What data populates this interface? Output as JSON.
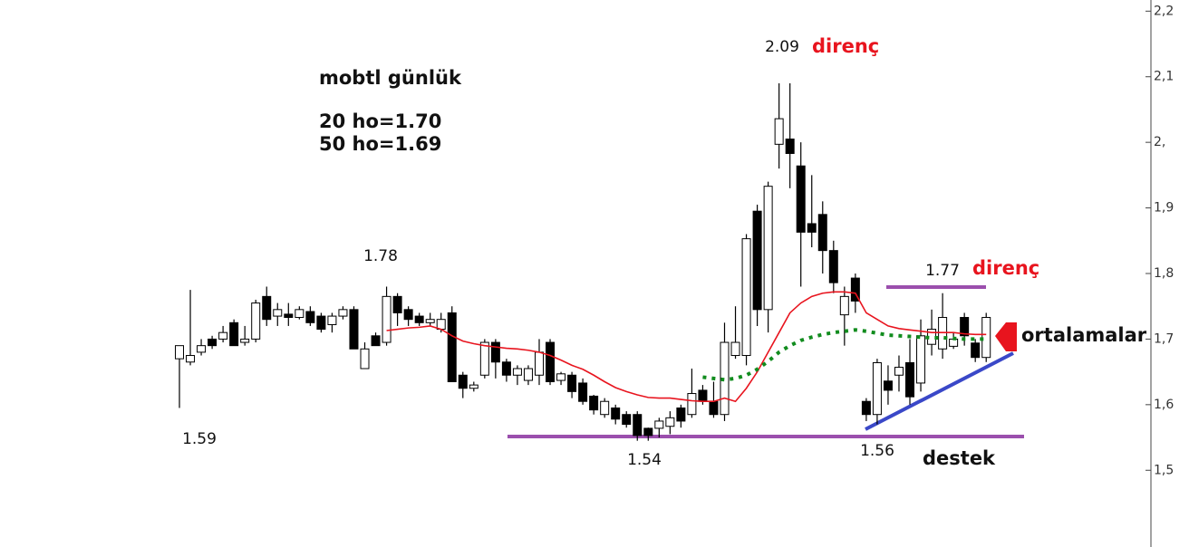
{
  "chart_data": {
    "type": "candlestick",
    "ylim": [
      1.383,
      2.217
    ],
    "yticks": [
      {
        "value": 1.5,
        "label": "1,5"
      },
      {
        "value": 1.6,
        "label": "1,6"
      },
      {
        "value": 1.7,
        "label": "1,7"
      },
      {
        "value": 1.8,
        "label": "1,8"
      },
      {
        "value": 1.9,
        "label": "1,9"
      },
      {
        "value": 2.0,
        "label": "2,"
      },
      {
        "value": 2.1,
        "label": "2,1"
      },
      {
        "value": 2.2,
        "label": "2,2"
      }
    ],
    "up_color": "#ffffff",
    "down_color": "#000000",
    "open": [
      1.67,
      1.665,
      1.68,
      1.7,
      1.7,
      1.725,
      1.695,
      1.7,
      1.765,
      1.735,
      1.738,
      1.733,
      1.742,
      1.735,
      1.722,
      1.735,
      1.745,
      1.655,
      1.705,
      1.695,
      1.765,
      1.745,
      1.735,
      1.725,
      1.715,
      1.74,
      1.645,
      1.625,
      1.645,
      1.695,
      1.665,
      1.645,
      1.637,
      1.645,
      1.695,
      1.637,
      1.645,
      1.633,
      1.613,
      1.585,
      1.595,
      1.585,
      1.585,
      1.564,
      1.564,
      1.567,
      1.595,
      1.585,
      1.622,
      1.605,
      1.585,
      1.675,
      1.675,
      1.895,
      1.745,
      1.997,
      2.005,
      1.964,
      1.876,
      1.89,
      1.835,
      1.737,
      1.793,
      1.605,
      1.585,
      1.636,
      1.645,
      1.664,
      1.633,
      1.692,
      1.685,
      1.689,
      1.733,
      1.694,
      1.672
    ],
    "close": [
      1.69,
      1.675,
      1.69,
      1.69,
      1.71,
      1.69,
      1.7,
      1.755,
      1.73,
      1.745,
      1.733,
      1.745,
      1.725,
      1.715,
      1.735,
      1.745,
      1.685,
      1.685,
      1.69,
      1.765,
      1.74,
      1.73,
      1.725,
      1.73,
      1.73,
      1.635,
      1.625,
      1.63,
      1.695,
      1.665,
      1.645,
      1.655,
      1.655,
      1.68,
      1.635,
      1.647,
      1.62,
      1.605,
      1.592,
      1.605,
      1.578,
      1.57,
      1.553,
      1.553,
      1.575,
      1.58,
      1.575,
      1.617,
      1.605,
      1.585,
      1.695,
      1.695,
      1.853,
      1.745,
      1.933,
      2.036,
      1.983,
      1.863,
      1.863,
      1.835,
      1.786,
      1.765,
      1.758,
      1.585,
      1.664,
      1.622,
      1.657,
      1.612,
      1.705,
      1.715,
      1.733,
      1.7,
      1.705,
      1.672,
      1.733
    ],
    "high": [
      1.69,
      1.775,
      1.7,
      1.705,
      1.72,
      1.73,
      1.72,
      1.76,
      1.78,
      1.755,
      1.755,
      1.75,
      1.75,
      1.74,
      1.74,
      1.75,
      1.75,
      1.695,
      1.71,
      1.78,
      1.77,
      1.75,
      1.74,
      1.74,
      1.74,
      1.75,
      1.65,
      1.635,
      1.7,
      1.7,
      1.67,
      1.66,
      1.66,
      1.7,
      1.7,
      1.65,
      1.65,
      1.64,
      1.615,
      1.61,
      1.6,
      1.59,
      1.59,
      1.565,
      1.58,
      1.59,
      1.6,
      1.655,
      1.63,
      1.635,
      1.725,
      1.75,
      1.86,
      1.905,
      1.94,
      2.09,
      2.09,
      2.0,
      1.95,
      1.91,
      1.85,
      1.78,
      1.8,
      1.61,
      1.67,
      1.66,
      1.675,
      1.7,
      1.73,
      1.745,
      1.77,
      1.71,
      1.74,
      1.7,
      1.74
    ],
    "low": [
      1.595,
      1.66,
      1.675,
      1.685,
      1.695,
      1.69,
      1.69,
      1.695,
      1.72,
      1.72,
      1.72,
      1.73,
      1.72,
      1.71,
      1.71,
      1.73,
      1.685,
      1.655,
      1.69,
      1.69,
      1.72,
      1.72,
      1.72,
      1.72,
      1.71,
      1.635,
      1.61,
      1.62,
      1.64,
      1.64,
      1.635,
      1.63,
      1.63,
      1.63,
      1.63,
      1.63,
      1.61,
      1.6,
      1.585,
      1.58,
      1.57,
      1.565,
      1.545,
      1.545,
      1.55,
      1.555,
      1.565,
      1.58,
      1.6,
      1.58,
      1.575,
      1.67,
      1.66,
      1.72,
      1.71,
      1.96,
      1.93,
      1.78,
      1.84,
      1.8,
      1.77,
      1.69,
      1.74,
      1.575,
      1.57,
      1.6,
      1.62,
      1.6,
      1.62,
      1.675,
      1.67,
      1.685,
      1.69,
      1.665,
      1.665
    ],
    "averages": [
      {
        "color": "#e8141e",
        "style": "solid",
        "values": [
          null,
          null,
          null,
          null,
          null,
          null,
          null,
          null,
          null,
          null,
          null,
          null,
          null,
          null,
          null,
          null,
          null,
          null,
          null,
          1.713,
          1.715,
          1.717,
          1.718,
          1.72,
          1.715,
          1.705,
          1.697,
          1.693,
          1.69,
          1.688,
          1.686,
          1.685,
          1.683,
          1.68,
          1.675,
          1.668,
          1.66,
          1.654,
          1.645,
          1.635,
          1.626,
          1.62,
          1.615,
          1.611,
          1.61,
          1.61,
          1.608,
          1.606,
          1.605,
          1.605,
          1.61,
          1.605,
          1.625,
          1.65,
          1.68,
          1.71,
          1.74,
          1.755,
          1.765,
          1.77,
          1.772,
          1.772,
          1.77,
          1.74,
          1.73,
          1.72,
          1.716,
          1.714,
          1.712,
          1.71,
          1.71,
          1.71,
          1.708,
          1.707,
          1.707
        ]
      },
      {
        "color": "#118c1e",
        "style": "dotted",
        "values": [
          null,
          null,
          null,
          null,
          null,
          null,
          null,
          null,
          null,
          null,
          null,
          null,
          null,
          null,
          null,
          null,
          null,
          null,
          null,
          null,
          null,
          null,
          null,
          null,
          null,
          null,
          null,
          null,
          null,
          null,
          null,
          null,
          null,
          null,
          null,
          null,
          null,
          null,
          null,
          null,
          null,
          null,
          null,
          null,
          null,
          null,
          null,
          null,
          1.642,
          1.64,
          1.638,
          1.64,
          1.645,
          1.654,
          1.666,
          1.68,
          1.69,
          1.698,
          1.703,
          1.707,
          1.71,
          1.712,
          1.714,
          1.712,
          1.709,
          1.706,
          1.705,
          1.704,
          1.703,
          1.702,
          1.702,
          1.701,
          1.7,
          1.7,
          1.7
        ]
      }
    ],
    "annotations": {
      "title": "mobtl günlük",
      "ma20": "20 ho=1.70",
      "ma50": "50 ho=1.69",
      "high_label": "2.09",
      "resistance_1": "direnç",
      "left_high": "1.78",
      "left_low": "1.59",
      "bottom_low": "1.54",
      "right_low": "1.56",
      "support": "destek",
      "right_high": "1.77",
      "resistance_2": "direnç",
      "averages_label": "ortalamalar"
    }
  }
}
